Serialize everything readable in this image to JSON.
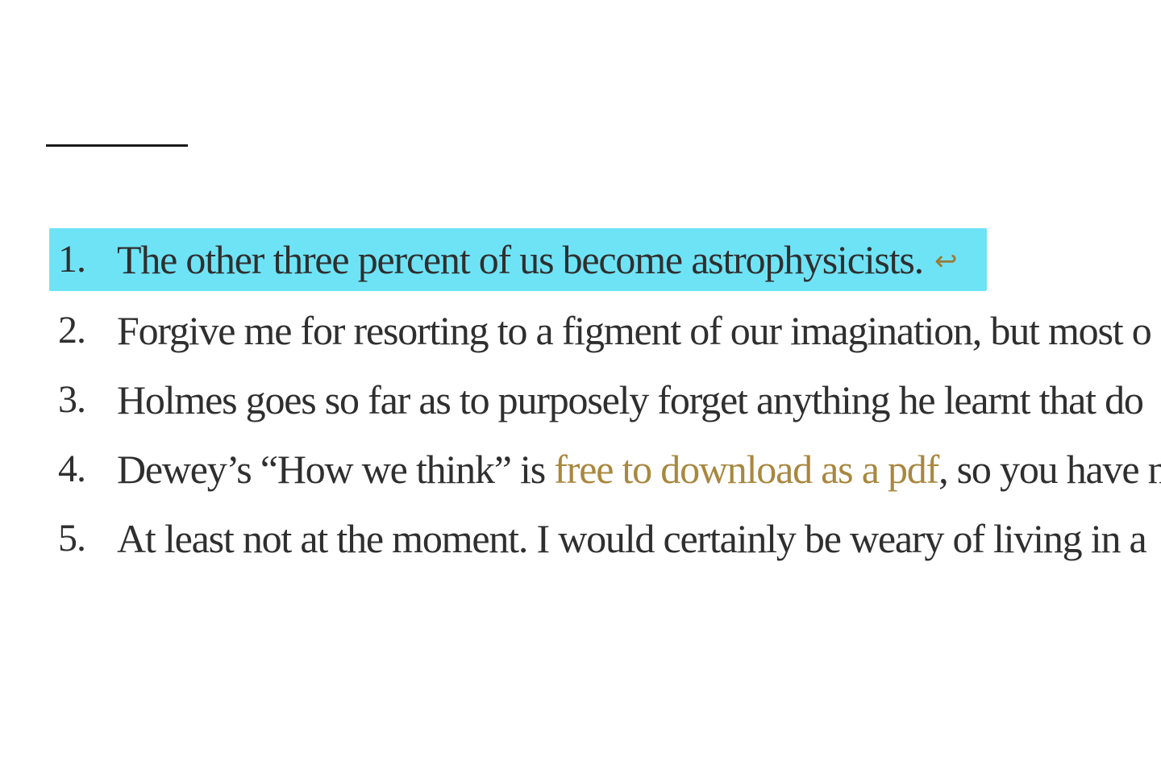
{
  "footnotes": [
    {
      "number": "1.",
      "text": "The other three percent of us become astrophysicists.",
      "backref": "↩"
    },
    {
      "number": "2.",
      "text": "Forgive me for resorting to a figment of our imagination, but most o"
    },
    {
      "number": "3.",
      "text": "Holmes goes so far as to purposely forget anything he learnt that do"
    },
    {
      "number": "4.",
      "text_before": "Dewey’s “How we think” is ",
      "link": "free to download as a pdf",
      "text_after": ", so you have n"
    },
    {
      "number": "5.",
      "text": "At least not at the moment. I would certainly be weary of living in a"
    }
  ],
  "colors": {
    "highlight": "#6fe3f6",
    "link": "#a8873f",
    "text": "#2f2f2f"
  }
}
